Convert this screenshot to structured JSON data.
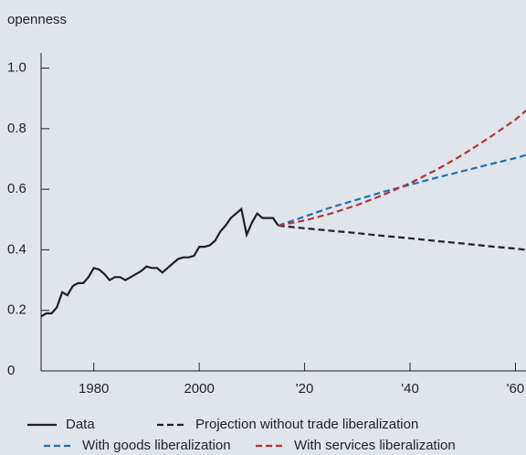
{
  "chart_data": {
    "type": "line",
    "y_label": "openness",
    "xlim": [
      1970,
      2062
    ],
    "ylim": [
      0,
      1.05
    ],
    "xticks": [
      1980,
      2000,
      {
        "value": 2020,
        "label": "'20"
      },
      {
        "value": 2040,
        "label": "'40"
      },
      {
        "value": 2060,
        "label": "'60"
      }
    ],
    "yticks": [
      0,
      0.2,
      0.4,
      0.6,
      0.8,
      {
        "value": 1,
        "label": "1.0"
      }
    ],
    "series": [
      {
        "name": "Data",
        "color": "#231f20",
        "dashed": false,
        "x": [
          1970,
          1971,
          1972,
          1973,
          1974,
          1975,
          1976,
          1977,
          1978,
          1979,
          1980,
          1981,
          1982,
          1983,
          1984,
          1985,
          1986,
          1987,
          1988,
          1989,
          1990,
          1991,
          1992,
          1993,
          1994,
          1995,
          1996,
          1997,
          1998,
          1999,
          2000,
          2001,
          2002,
          2003,
          2004,
          2005,
          2006,
          2007,
          2008,
          2009,
          2010,
          2011,
          2012,
          2013,
          2014,
          2015
        ],
        "values": [
          0.18,
          0.19,
          0.19,
          0.21,
          0.26,
          0.25,
          0.28,
          0.29,
          0.29,
          0.31,
          0.34,
          0.335,
          0.32,
          0.3,
          0.31,
          0.31,
          0.3,
          0.31,
          0.32,
          0.33,
          0.345,
          0.34,
          0.34,
          0.325,
          0.34,
          0.355,
          0.37,
          0.375,
          0.375,
          0.38,
          0.41,
          0.41,
          0.415,
          0.43,
          0.46,
          0.48,
          0.505,
          0.52,
          0.535,
          0.45,
          0.49,
          0.52,
          0.505,
          0.505,
          0.505,
          0.48
        ]
      },
      {
        "name": "Projection without trade liberalization",
        "color": "#231f20",
        "dashed": true,
        "x": [
          2015,
          2020,
          2025,
          2030,
          2035,
          2040,
          2045,
          2050,
          2055,
          2060,
          2062
        ],
        "values": [
          0.48,
          0.471,
          0.463,
          0.455,
          0.446,
          0.438,
          0.429,
          0.421,
          0.412,
          0.404,
          0.4
        ]
      },
      {
        "name": "With goods liberalization",
        "color": "#1f6fb4",
        "dashed": true,
        "x": [
          2015,
          2020,
          2025,
          2030,
          2035,
          2040,
          2045,
          2050,
          2055,
          2060,
          2062
        ],
        "values": [
          0.48,
          0.51,
          0.54,
          0.566,
          0.592,
          0.615,
          0.638,
          0.66,
          0.682,
          0.703,
          0.713
        ]
      },
      {
        "name": "With services liberalization",
        "color": "#b5323a",
        "dashed": true,
        "x": [
          2015,
          2020,
          2025,
          2030,
          2035,
          2040,
          2045,
          2050,
          2055,
          2060,
          2062
        ],
        "values": [
          0.48,
          0.497,
          0.52,
          0.548,
          0.582,
          0.62,
          0.664,
          0.714,
          0.77,
          0.83,
          0.86
        ]
      }
    ]
  }
}
